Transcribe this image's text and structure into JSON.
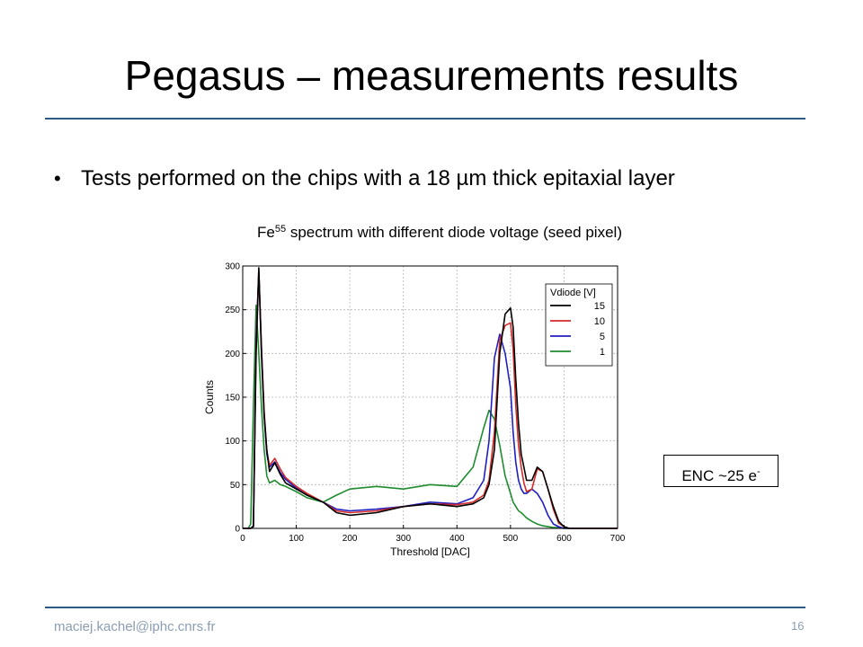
{
  "slide": {
    "title": "Pegasus – measurements results",
    "bullet": "•",
    "bullet_text": "Tests performed on the chips with a 18 µm thick epitaxial layer",
    "caption_prefix": "Fe",
    "caption_sup": "55",
    "caption_suffix": " spectrum with different diode voltage (seed pixel)",
    "note_text": "ENC ~25 e",
    "note_sup": "-",
    "footer_email": "maciej.kachel@iphc.cnrs.fr",
    "page_number": "16"
  },
  "chart_data": {
    "type": "line",
    "xlabel": "Threshold [DAC]",
    "ylabel": "Counts",
    "xlim": [
      0,
      700
    ],
    "ylim": [
      0,
      300
    ],
    "xticks": [
      0,
      100,
      200,
      300,
      400,
      500,
      600,
      700
    ],
    "yticks": [
      0,
      50,
      100,
      150,
      200,
      250,
      300
    ],
    "grid": true,
    "legend_title": "Vdiode [V]",
    "legend_position": "top-right",
    "series": [
      {
        "name": "15",
        "color": "#000000",
        "x": [
          0,
          10,
          15,
          20,
          25,
          30,
          35,
          40,
          45,
          50,
          60,
          70,
          80,
          100,
          120,
          150,
          175,
          200,
          250,
          300,
          350,
          400,
          430,
          450,
          460,
          470,
          480,
          490,
          500,
          505,
          510,
          515,
          520,
          525,
          530,
          540,
          550,
          560,
          570,
          580,
          590,
          600,
          610,
          620,
          650,
          700
        ],
        "y": [
          0,
          0,
          0,
          2,
          200,
          298,
          200,
          130,
          90,
          65,
          75,
          62,
          52,
          45,
          38,
          30,
          18,
          15,
          18,
          25,
          28,
          25,
          28,
          35,
          50,
          90,
          200,
          245,
          252,
          230,
          170,
          120,
          85,
          70,
          55,
          55,
          70,
          65,
          45,
          25,
          8,
          2,
          0,
          0,
          0,
          0
        ]
      },
      {
        "name": "10",
        "color": "#d42a2a",
        "x": [
          0,
          10,
          15,
          20,
          25,
          30,
          35,
          40,
          45,
          50,
          60,
          70,
          80,
          100,
          120,
          150,
          175,
          200,
          250,
          300,
          350,
          400,
          430,
          450,
          460,
          470,
          480,
          490,
          500,
          505,
          510,
          515,
          520,
          525,
          530,
          540,
          550,
          560,
          570,
          580,
          590,
          600,
          610,
          620,
          650,
          700
        ],
        "y": [
          0,
          0,
          0,
          2,
          210,
          295,
          205,
          135,
          88,
          72,
          80,
          68,
          58,
          48,
          40,
          30,
          20,
          18,
          20,
          25,
          28,
          27,
          30,
          38,
          55,
          110,
          215,
          232,
          235,
          205,
          140,
          95,
          70,
          52,
          42,
          45,
          68,
          65,
          45,
          22,
          6,
          2,
          0,
          0,
          0,
          0
        ]
      },
      {
        "name": "5",
        "color": "#2020c0",
        "x": [
          0,
          10,
          15,
          20,
          25,
          30,
          35,
          40,
          45,
          50,
          60,
          70,
          80,
          100,
          120,
          150,
          175,
          200,
          250,
          300,
          350,
          400,
          430,
          450,
          460,
          470,
          480,
          490,
          500,
          505,
          510,
          515,
          520,
          525,
          530,
          540,
          550,
          560,
          570,
          580,
          590,
          600,
          610,
          620,
          650,
          700
        ],
        "y": [
          0,
          0,
          0,
          3,
          220,
          292,
          210,
          130,
          85,
          70,
          76,
          64,
          56,
          46,
          38,
          30,
          22,
          20,
          22,
          25,
          30,
          28,
          35,
          55,
          100,
          195,
          222,
          200,
          160,
          110,
          75,
          55,
          45,
          40,
          40,
          45,
          40,
          30,
          15,
          5,
          2,
          0,
          0,
          0,
          0,
          0
        ]
      },
      {
        "name": "1",
        "color": "#1e8c2e",
        "x": [
          0,
          10,
          15,
          20,
          25,
          30,
          35,
          40,
          45,
          50,
          60,
          70,
          80,
          100,
          120,
          150,
          175,
          200,
          250,
          300,
          350,
          400,
          430,
          450,
          460,
          470,
          480,
          490,
          500,
          505,
          510,
          515,
          520,
          525,
          530,
          540,
          550,
          560,
          570,
          580,
          590,
          600,
          610,
          620,
          650,
          700
        ],
        "y": [
          0,
          0,
          5,
          140,
          255,
          200,
          140,
          90,
          60,
          52,
          55,
          50,
          48,
          42,
          35,
          30,
          38,
          45,
          48,
          45,
          50,
          48,
          70,
          115,
          135,
          125,
          95,
          60,
          40,
          30,
          25,
          20,
          18,
          15,
          12,
          8,
          5,
          3,
          2,
          1,
          1,
          0,
          0,
          0,
          0,
          0
        ]
      }
    ]
  }
}
